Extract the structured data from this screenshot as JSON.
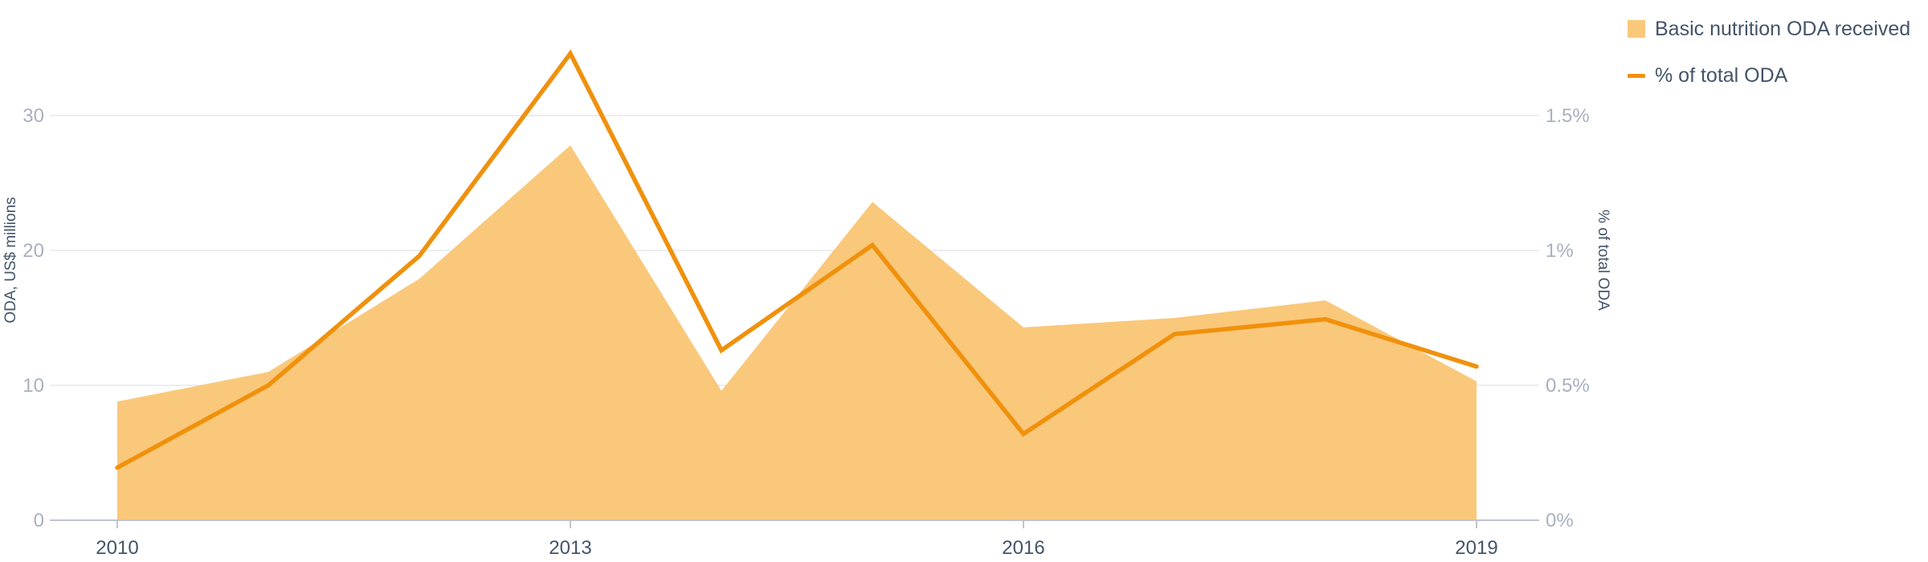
{
  "chart_data": {
    "type": "area",
    "categories": [
      "2010",
      "2011",
      "2012",
      "2013",
      "2014",
      "2015",
      "2016",
      "2017",
      "2018",
      "2019"
    ],
    "series": [
      {
        "name": "Basic nutrition ODA received",
        "type": "area",
        "axis": "left",
        "values": [
          8.8,
          11.0,
          17.9,
          27.8,
          9.6,
          23.6,
          14.3,
          15.0,
          16.3,
          10.3
        ]
      },
      {
        "name": "% of total ODA",
        "type": "line",
        "axis": "right",
        "values": [
          0.195,
          0.5,
          0.98,
          1.73,
          0.63,
          1.02,
          0.32,
          0.69,
          0.745,
          0.57
        ]
      }
    ],
    "x_tick_labels": [
      "2010",
      "2013",
      "2016",
      "2019"
    ],
    "y_left": {
      "label": "ODA, US$ millions",
      "ylim": [
        0,
        35
      ],
      "ticks": [
        0,
        10,
        20,
        30
      ],
      "tick_labels": [
        "0",
        "10",
        "20",
        "30"
      ]
    },
    "y_right": {
      "label": "% of total ODA",
      "ylim": [
        0,
        1.75
      ],
      "ticks": [
        0,
        0.5,
        1,
        1.5
      ],
      "tick_labels": [
        "0%",
        "0.5%",
        "1%",
        "1.5%"
      ]
    },
    "grid": true,
    "legend_position": "top-right",
    "colors": {
      "area": "#fac87a",
      "line": "#f0910c",
      "grid": "#e6e8ec",
      "axis": "#c0c4cc"
    }
  }
}
